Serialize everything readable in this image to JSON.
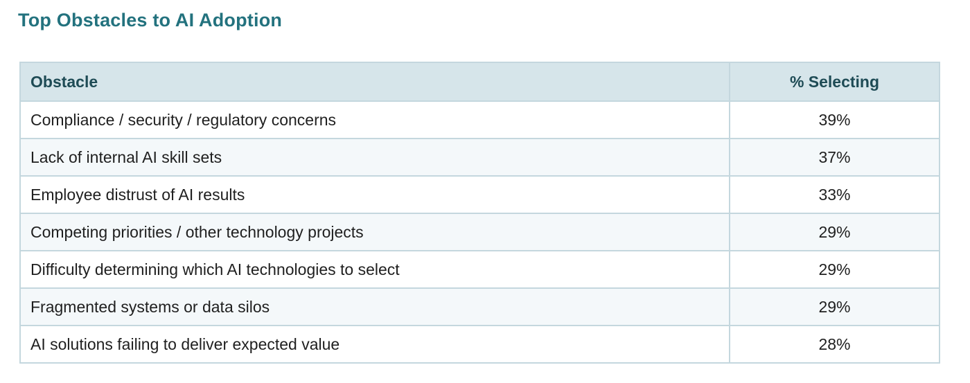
{
  "chart_data": {
    "type": "table",
    "title": "Top Obstacles to AI Adoption",
    "columns": [
      "Obstacle",
      "% Selecting"
    ],
    "rows": [
      {
        "obstacle": "Compliance / security / regulatory concerns",
        "percent": "39%"
      },
      {
        "obstacle": "Lack of internal AI skill sets",
        "percent": "37%"
      },
      {
        "obstacle": "Employee distrust of AI results",
        "percent": "33%"
      },
      {
        "obstacle": "Competing priorities / other technology projects",
        "percent": "29%"
      },
      {
        "obstacle": "Difficulty determining which AI technologies to select",
        "percent": "29%"
      },
      {
        "obstacle": "Fragmented systems or data silos",
        "percent": "29%"
      },
      {
        "obstacle": "AI solutions failing to deliver expected value",
        "percent": "28%"
      }
    ]
  },
  "colors": {
    "title": "#23727e",
    "header_bg": "#d6e5ea",
    "header_text": "#1e4b55",
    "border": "#c4d7de",
    "alt_row_bg": "#f4f8fa"
  }
}
